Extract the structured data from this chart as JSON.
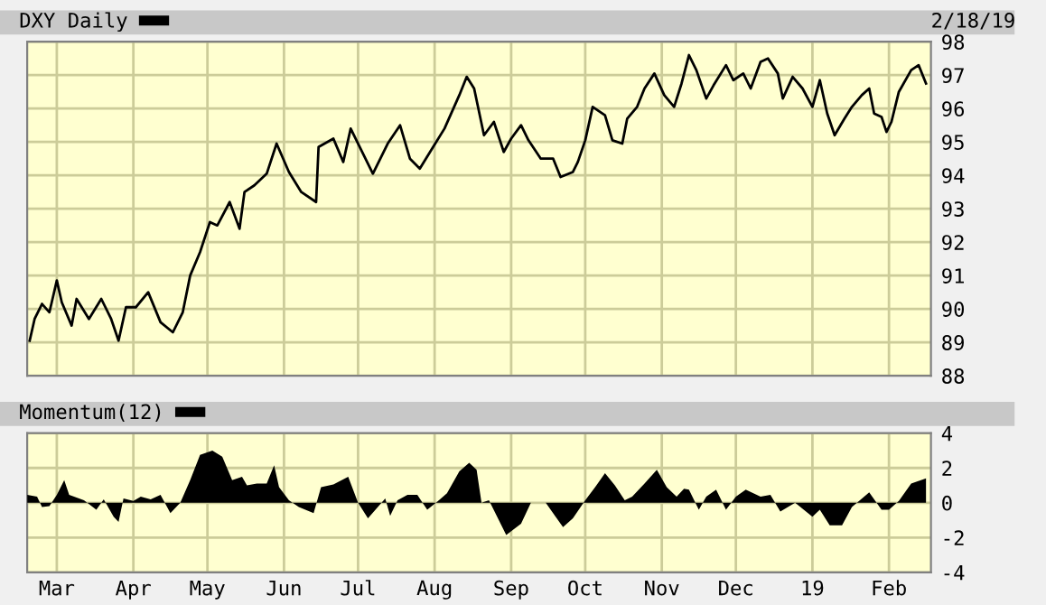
{
  "chart_data": [
    {
      "type": "line",
      "legend": "top left",
      "grid": true,
      "tick_labels": "y",
      "annotations": [
        "2/18/19"
      ],
      "xlim": [
        "2018-02-17",
        "2019-02-18"
      ],
      "ylim": [
        88,
        98
      ],
      "yticks": [
        88,
        89,
        90,
        91,
        92,
        93,
        94,
        95,
        96,
        97,
        98
      ],
      "xticks": [
        {
          "value": "2018-03-01",
          "label": null
        },
        {
          "value": "2018-04-01",
          "label": null
        },
        {
          "value": "2018-05-01",
          "label": null
        },
        {
          "value": "2018-06-01",
          "label": null
        },
        {
          "value": "2018-07-01",
          "label": null
        },
        {
          "value": "2018-08-01",
          "label": null
        },
        {
          "value": "2018-09-01",
          "label": null
        },
        {
          "value": "2018-10-01",
          "label": null
        },
        {
          "value": "2018-11-01",
          "label": null
        },
        {
          "value": "2018-12-01",
          "label": null
        },
        {
          "value": "2019-01-01",
          "label": null
        },
        {
          "value": "2019-02-01",
          "label": null
        }
      ],
      "series": [
        {
          "name": "DXY Daily",
          "color": "#000000",
          "x": [
            "2018-02-18",
            "2018-02-20",
            "2018-02-23",
            "2018-02-26",
            "2018-03-01",
            "2018-03-03",
            "2018-03-07",
            "2018-03-09",
            "2018-03-14",
            "2018-03-19",
            "2018-03-23",
            "2018-03-26",
            "2018-03-29",
            "2018-04-02",
            "2018-04-07",
            "2018-04-12",
            "2018-04-17",
            "2018-04-21",
            "2018-04-24",
            "2018-04-28",
            "2018-05-02",
            "2018-05-05",
            "2018-05-10",
            "2018-05-14",
            "2018-05-16",
            "2018-05-20",
            "2018-05-25",
            "2018-05-29",
            "2018-06-03",
            "2018-06-08",
            "2018-06-14",
            "2018-06-15",
            "2018-06-21",
            "2018-06-25",
            "2018-06-28",
            "2018-07-02",
            "2018-07-07",
            "2018-07-13",
            "2018-07-18",
            "2018-07-22",
            "2018-07-26",
            "2018-07-31",
            "2018-08-05",
            "2018-08-11",
            "2018-08-14",
            "2018-08-17",
            "2018-08-21",
            "2018-08-25",
            "2018-08-29",
            "2018-09-01",
            "2018-09-05",
            "2018-09-08",
            "2018-09-13",
            "2018-09-18",
            "2018-09-21",
            "2018-09-26",
            "2018-09-28",
            "2018-10-01",
            "2018-10-04",
            "2018-10-09",
            "2018-10-12",
            "2018-10-16",
            "2018-10-18",
            "2018-10-22",
            "2018-10-25",
            "2018-10-29",
            "2018-11-02",
            "2018-11-06",
            "2018-11-09",
            "2018-11-12",
            "2018-11-15",
            "2018-11-19",
            "2018-11-22",
            "2018-11-27",
            "2018-11-30",
            "2018-12-04",
            "2018-12-07",
            "2018-12-11",
            "2018-12-14",
            "2018-12-18",
            "2018-12-20",
            "2018-12-24",
            "2018-12-28",
            "2019-01-01",
            "2019-01-04",
            "2019-01-07",
            "2019-01-10",
            "2019-01-14",
            "2019-01-17",
            "2019-01-21",
            "2019-01-24",
            "2019-01-26",
            "2019-01-29",
            "2019-01-31",
            "2019-02-02",
            "2019-02-05",
            "2019-02-10",
            "2019-02-13",
            "2019-02-16"
          ],
          "values": [
            89.05,
            89.7,
            90.15,
            89.9,
            90.85,
            90.2,
            89.5,
            90.3,
            89.7,
            90.3,
            89.7,
            89.05,
            90.05,
            90.05,
            90.5,
            89.6,
            89.3,
            89.9,
            91.0,
            91.7,
            92.6,
            92.5,
            93.2,
            92.4,
            93.5,
            93.7,
            94.05,
            94.95,
            94.1,
            93.5,
            93.2,
            94.85,
            95.1,
            94.4,
            95.4,
            94.8,
            94.05,
            94.95,
            95.5,
            94.5,
            94.2,
            94.8,
            95.4,
            96.4,
            96.95,
            96.6,
            95.2,
            95.6,
            94.7,
            95.1,
            95.5,
            95.05,
            94.5,
            94.5,
            93.95,
            94.1,
            94.4,
            95.05,
            96.05,
            95.8,
            95.05,
            94.95,
            95.7,
            96.05,
            96.6,
            97.05,
            96.4,
            96.05,
            96.75,
            97.6,
            97.15,
            96.3,
            96.7,
            97.3,
            96.85,
            97.05,
            96.6,
            97.4,
            97.5,
            97.05,
            96.3,
            96.95,
            96.6,
            96.05,
            96.85,
            95.85,
            95.2,
            95.7,
            96.05,
            96.4,
            96.6,
            95.85,
            95.75,
            95.3,
            95.6,
            96.5,
            97.15,
            97.3,
            96.75
          ]
        }
      ]
    },
    {
      "type": "area",
      "legend": "top left",
      "grid": true,
      "xlim": [
        "2018-02-17",
        "2019-02-18"
      ],
      "ylim": [
        -4,
        4
      ],
      "yticks": [
        -4,
        -2,
        0,
        2,
        4
      ],
      "xticks": [
        {
          "value": "2018-03-01",
          "label": "Mar"
        },
        {
          "value": "2018-04-01",
          "label": "Apr"
        },
        {
          "value": "2018-05-01",
          "label": "May"
        },
        {
          "value": "2018-06-01",
          "label": "Jun"
        },
        {
          "value": "2018-07-01",
          "label": "Jul"
        },
        {
          "value": "2018-08-01",
          "label": "Aug"
        },
        {
          "value": "2018-09-01",
          "label": "Sep"
        },
        {
          "value": "2018-10-01",
          "label": "Oct"
        },
        {
          "value": "2018-11-01",
          "label": "Nov"
        },
        {
          "value": "2018-12-01",
          "label": "Dec"
        },
        {
          "value": "2019-01-01",
          "label": "19"
        },
        {
          "value": "2019-02-01",
          "label": "Feb"
        }
      ],
      "series": [
        {
          "name": "Momentum(12)",
          "color": "#000000",
          "x": [
            "2018-02-17",
            "2018-02-21",
            "2018-02-23",
            "2018-02-26",
            "2018-03-01",
            "2018-03-04",
            "2018-03-06",
            "2018-03-12",
            "2018-03-17",
            "2018-03-20",
            "2018-03-24",
            "2018-03-26",
            "2018-03-28",
            "2018-04-01",
            "2018-04-04",
            "2018-04-08",
            "2018-04-12",
            "2018-04-16",
            "2018-04-20",
            "2018-04-24",
            "2018-04-28",
            "2018-05-03",
            "2018-05-07",
            "2018-05-11",
            "2018-05-15",
            "2018-05-17",
            "2018-05-21",
            "2018-05-25",
            "2018-05-28",
            "2018-05-30",
            "2018-06-03",
            "2018-06-07",
            "2018-06-13",
            "2018-06-16",
            "2018-06-21",
            "2018-06-27",
            "2018-07-01",
            "2018-07-05",
            "2018-07-09",
            "2018-07-12",
            "2018-07-14",
            "2018-07-17",
            "2018-07-21",
            "2018-07-25",
            "2018-07-29",
            "2018-08-02",
            "2018-08-06",
            "2018-08-11",
            "2018-08-15",
            "2018-08-18",
            "2018-08-20",
            "2018-08-23",
            "2018-08-30",
            "2018-09-05",
            "2018-09-09",
            "2018-09-15",
            "2018-09-19",
            "2018-09-22",
            "2018-09-26",
            "2018-10-01",
            "2018-10-05",
            "2018-10-09",
            "2018-10-13",
            "2018-10-17",
            "2018-10-20",
            "2018-10-25",
            "2018-10-30",
            "2018-11-03",
            "2018-11-07",
            "2018-11-10",
            "2018-11-12",
            "2018-11-16",
            "2018-11-19",
            "2018-11-23",
            "2018-11-27",
            "2018-12-01",
            "2018-12-05",
            "2018-12-11",
            "2018-12-15",
            "2018-12-19",
            "2018-12-25",
            "2019-01-01",
            "2019-01-04",
            "2019-01-08",
            "2019-01-13",
            "2019-01-17",
            "2019-01-24",
            "2019-01-29",
            "2019-02-01",
            "2019-02-05",
            "2019-02-10",
            "2019-02-16"
          ],
          "values": [
            0.45,
            0.35,
            -0.25,
            -0.2,
            0.45,
            1.3,
            0.45,
            0.15,
            -0.4,
            0.2,
            -0.8,
            -1.1,
            0.25,
            0.1,
            0.35,
            0.2,
            0.45,
            -0.6,
            0,
            1.3,
            2.75,
            3.0,
            2.65,
            1.3,
            1.5,
            1.0,
            1.1,
            1.1,
            2.15,
            0.9,
            0.15,
            -0.25,
            -0.6,
            0.9,
            1.05,
            1.5,
            0,
            -0.9,
            -0.25,
            0.25,
            -0.75,
            0.15,
            0.45,
            0.45,
            -0.4,
            0.05,
            0.55,
            1.8,
            2.3,
            1.9,
            0,
            0.15,
            -1.85,
            -1.2,
            0,
            0,
            -0.8,
            -1.4,
            -0.9,
            0.15,
            0.9,
            1.7,
            1.0,
            0.15,
            0.35,
            1.1,
            1.9,
            0.9,
            0.35,
            0.8,
            0.75,
            -0.4,
            0.35,
            0.75,
            -0.4,
            0.35,
            0.75,
            0.35,
            0.45,
            -0.5,
            0,
            -0.8,
            -0.4,
            -1.3,
            -1.3,
            -0.25,
            0.6,
            -0.4,
            -0.4,
            0.1,
            1.1,
            1.4
          ]
        }
      ]
    }
  ]
}
